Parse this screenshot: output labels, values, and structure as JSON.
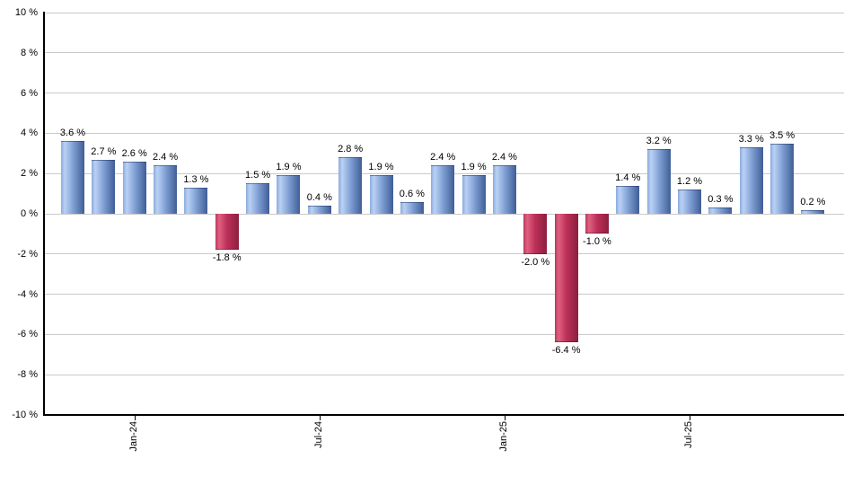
{
  "chart_data": {
    "type": "bar",
    "title": "",
    "xlabel": "",
    "ylabel": "",
    "unit": "%",
    "ylim": [
      -10,
      10
    ],
    "grid": true,
    "legend": null,
    "y_ticks": [
      {
        "value": 10,
        "label": "10 %"
      },
      {
        "value": 8,
        "label": "8 %"
      },
      {
        "value": 6,
        "label": "6 %"
      },
      {
        "value": 4,
        "label": "4 %"
      },
      {
        "value": 2,
        "label": "2 %"
      },
      {
        "value": 0,
        "label": "0 %"
      },
      {
        "value": -2,
        "label": "-2 %"
      },
      {
        "value": -4,
        "label": "-4 %"
      },
      {
        "value": -6,
        "label": "-6 %"
      },
      {
        "value": -8,
        "label": "-8 %"
      },
      {
        "value": -10,
        "label": "-10 %"
      }
    ],
    "x_ticks": [
      {
        "label": "Jan-24",
        "bar_index": 2
      },
      {
        "label": "Jul-24",
        "bar_index": 8
      },
      {
        "label": "Jan-25",
        "bar_index": 14
      },
      {
        "label": "Jul-25",
        "bar_index": 20
      }
    ],
    "bars": [
      {
        "value": 3.6,
        "label": "3.6 %"
      },
      {
        "value": 2.7,
        "label": "2.7 %"
      },
      {
        "value": 2.6,
        "label": "2.6 %"
      },
      {
        "value": 2.4,
        "label": "2.4 %"
      },
      {
        "value": 1.3,
        "label": "1.3 %"
      },
      {
        "value": -1.8,
        "label": "-1.8 %"
      },
      {
        "value": 1.5,
        "label": "1.5 %"
      },
      {
        "value": 1.9,
        "label": "1.9 %"
      },
      {
        "value": 0.4,
        "label": "0.4 %"
      },
      {
        "value": 2.8,
        "label": "2.8 %"
      },
      {
        "value": 1.9,
        "label": "1.9 %"
      },
      {
        "value": 0.6,
        "label": "0.6 %"
      },
      {
        "value": 2.4,
        "label": "2.4 %"
      },
      {
        "value": 1.9,
        "label": "1.9 %"
      },
      {
        "value": 2.4,
        "label": "2.4 %"
      },
      {
        "value": -2.0,
        "label": "-2.0 %"
      },
      {
        "value": -6.4,
        "label": "-6.4 %"
      },
      {
        "value": -1.0,
        "label": "-1.0 %"
      },
      {
        "value": 1.4,
        "label": "1.4 %"
      },
      {
        "value": 3.2,
        "label": "3.2 %"
      },
      {
        "value": 1.2,
        "label": "1.2 %"
      },
      {
        "value": 0.3,
        "label": "0.3 %"
      },
      {
        "value": 3.3,
        "label": "3.3 %"
      },
      {
        "value": 3.5,
        "label": "3.5 %"
      },
      {
        "value": 0.2,
        "label": "0.2 %"
      }
    ],
    "colors": {
      "positive_gradient": [
        "#8aabdd",
        "#bad1f4",
        "#82a2d6",
        "#3f5e97"
      ],
      "negative_gradient": [
        "#b93a5c",
        "#df6080",
        "#bc3059",
        "#8c1f3e"
      ],
      "gridline": "#c9c9c9",
      "axis": "#000000",
      "text": "#000000"
    }
  }
}
